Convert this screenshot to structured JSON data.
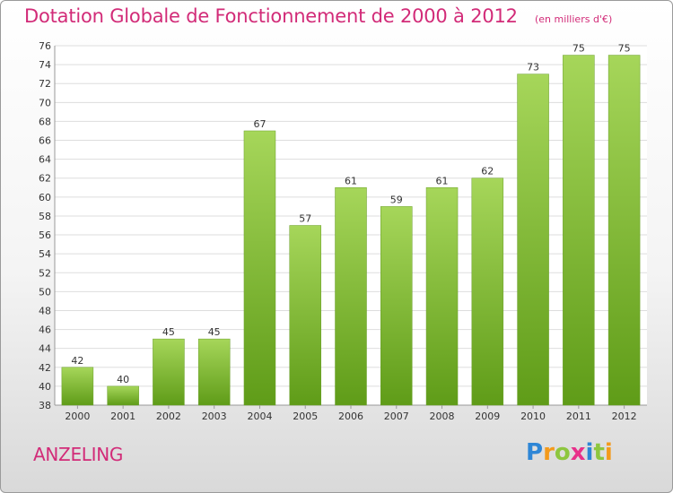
{
  "title": "Dotation Globale de Fonctionnement de 2000 à 2012",
  "unit": "(en milliers d'€)",
  "place": "ANZELING",
  "logo": {
    "text": "Proxiti",
    "letters": [
      {
        "ch": "P",
        "color": "#2e86d6"
      },
      {
        "ch": "r",
        "color": "#f39a1b"
      },
      {
        "ch": "o",
        "color": "#8dc63f"
      },
      {
        "ch": "x",
        "color": "#e8308a"
      },
      {
        "ch": "i",
        "color": "#2e86d6"
      },
      {
        "ch": "t",
        "color": "#8dc63f"
      },
      {
        "ch": "i",
        "color": "#f39a1b"
      }
    ]
  },
  "colors": {
    "bar_top": "#a6d65a",
    "bar_bottom": "#5f9c18",
    "accent": "#d22b78",
    "grid": "#dddddd"
  },
  "chart_data": {
    "type": "bar",
    "categories": [
      "2000",
      "2001",
      "2002",
      "2003",
      "2004",
      "2005",
      "2006",
      "2007",
      "2008",
      "2009",
      "2010",
      "2011",
      "2012"
    ],
    "values": [
      42,
      40,
      45,
      45,
      67,
      57,
      61,
      59,
      61,
      62,
      73,
      75,
      75
    ],
    "title": "Dotation Globale de Fonctionnement de 2000 à 2012",
    "xlabel": "",
    "ylabel": "",
    "ylim": [
      38,
      76
    ],
    "yticks": [
      38,
      40,
      42,
      44,
      46,
      48,
      50,
      52,
      54,
      56,
      58,
      60,
      62,
      64,
      66,
      68,
      70,
      72,
      74,
      76
    ],
    "grid": true,
    "data_labels": true
  }
}
